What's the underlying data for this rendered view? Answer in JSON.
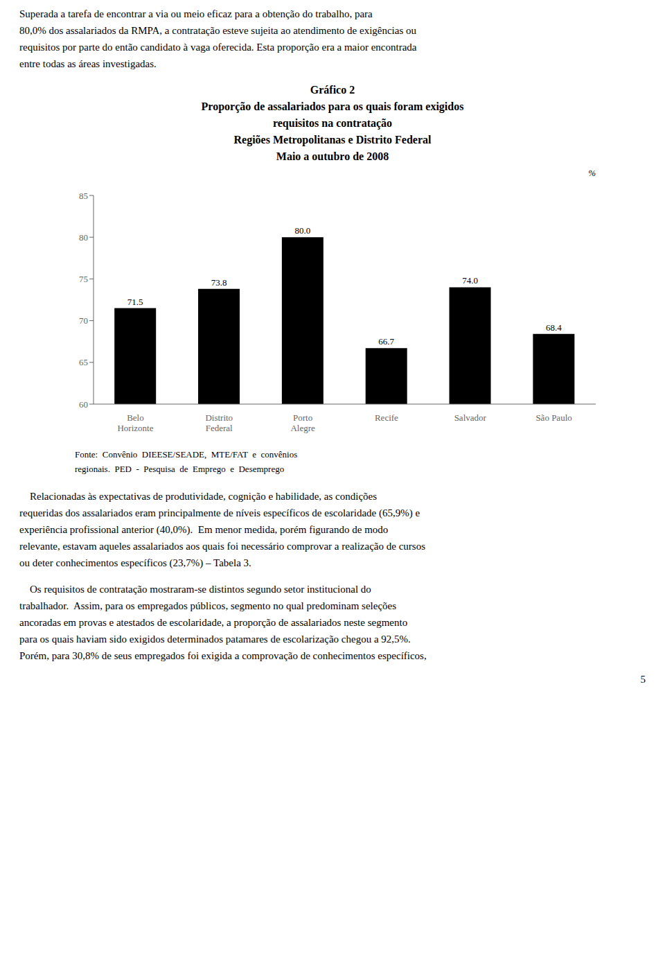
{
  "chart_data": {
    "type": "bar",
    "title": "Gráfico 2\nProporção de assalariados para os quais foram exigidos\nrequisitos na contratação\nRegiões Metropolitanas e Distrito Federal\nMaio a outubro de 2008",
    "ylabel": "%",
    "categories": [
      "Belo\nHorizonte",
      "Distrito\nFederal",
      "Porto\nAlegre",
      "Recife",
      "Salvador",
      "São Paulo"
    ],
    "values": [
      71.5,
      73.8,
      80.0,
      66.7,
      74.0,
      68.4
    ],
    "value_labels": [
      "71.5",
      "73.8",
      "80.0",
      "66.7",
      "74.0",
      "68.4"
    ],
    "data_labels": true,
    "color": "#000000",
    "ylim": [
      60,
      85
    ],
    "yticks": [
      60,
      65,
      70,
      75,
      80,
      85
    ],
    "grid": false,
    "annotations": [
      "Superada a tarefa de encontrar a via ou meio eficaz para a obtenção do trabalho, para\n80,0% dos assalariados da RMPA, a contratação esteve sujeita ao atendimento de exigências ou\nrequisitos por parte do então candidato à vaga oferecida. Esta proporção era a maior encontrada\nentre todas as áreas investigadas.",
      "Fonte:  Convênio  DIEESE/SEADE,  MTE/FAT  e  convênios\nregionais.  PED  -  Pesquisa  de  Emprego  e  Desemprego",
      "    Relacionadas às expectativas de produtividade, cognição e habilidade, as condições\nrequeridas dos assalariados eram principalmente de níveis específicos de escolaridade (65,9%) e\nexperiência profissional anterior (40,0%).  Em menor medida, porém figurando de modo\nrelevante, estavam aqueles assalariados aos quais foi necessário comprovar a realização de cursos\nou deter conhecimentos específicos (23,7%) – Tabela 3.",
      "    Os requisitos de contratação mostraram-se distintos segundo setor institucional do\ntrabalhador.  Assim, para os empregados públicos, segmento no qual predominam seleções\nancoradas em provas e atestados de escolaridade, a proporção de assalariados neste segmento\npara os quais haviam sido exigidos determinados patamares de escolarização chegou a 92,5%.\nPorém, para 30,8% de seus empregados foi exigida a comprovação de conhecimentos específicos,",
      "5"
    ]
  }
}
